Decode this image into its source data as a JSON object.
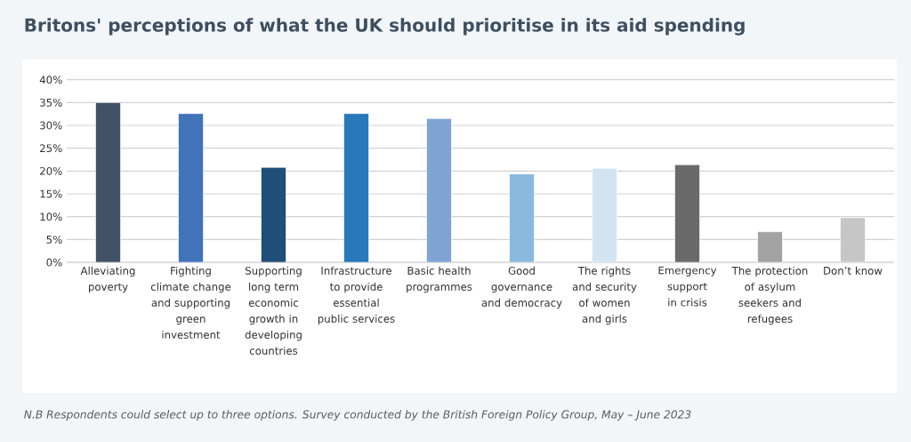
{
  "chart_data": {
    "type": "bar",
    "title": "Britons' perceptions of what the UK should prioritise in its aid spending",
    "categories": [
      "Alleviating poverty",
      "Fighting climate change and supporting green investment",
      "Supporting long term economic growth in developing countries",
      "Infrastructure to provide essential public services",
      "Basic health programmes",
      "Good governance and democracy",
      "The rights and security of women and girls",
      "Emergency support in crisis",
      "The protection of asylum seekers and refugees",
      "Don’t know"
    ],
    "values": [
      35,
      32.6,
      20.8,
      32.6,
      31.5,
      19.4,
      20.6,
      21.4,
      6.7,
      9.8
    ],
    "colors": [
      "#415166",
      "#4173b9",
      "#1f4e78",
      "#2878bc",
      "#7fa4d4",
      "#8ab9e0",
      "#d2e4f2",
      "#6a6a6a",
      "#a3a3a3",
      "#c6c6c6"
    ],
    "ylim": [
      0,
      40
    ],
    "yticks": [
      {
        "value": 0,
        "label": "0%"
      },
      {
        "value": 5,
        "label": "5%"
      },
      {
        "value": 10,
        "label": "10%"
      },
      {
        "value": 15,
        "label": "15%"
      },
      {
        "value": 20,
        "label": "20%"
      },
      {
        "value": 25,
        "label": "25%"
      },
      {
        "value": 30,
        "label": "30%"
      },
      {
        "value": 35,
        "label": "35%"
      },
      {
        "value": 40,
        "label": "40%"
      }
    ],
    "grid": "y",
    "annotations": [
      "N.B Respondents could select up to three options. Survey conducted by the British Foreign Policy Group, May – June 2023"
    ]
  }
}
